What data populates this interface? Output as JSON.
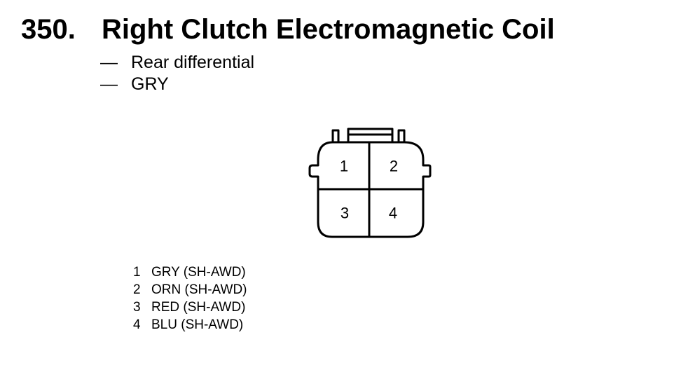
{
  "header": {
    "number": "350.",
    "title": "Right Clutch Electromagnetic Coil"
  },
  "details": [
    {
      "dash": "—",
      "text": "Rear differential"
    },
    {
      "dash": "—",
      "text": "GRY"
    }
  ],
  "connector": {
    "cavities": [
      "1",
      "2",
      "3",
      "4"
    ]
  },
  "pins": [
    {
      "pin": "1",
      "wire": "GRY (SH-AWD)"
    },
    {
      "pin": "2",
      "wire": "ORN (SH-AWD)"
    },
    {
      "pin": "3",
      "wire": "RED (SH-AWD)"
    },
    {
      "pin": "4",
      "wire": "BLU (SH-AWD)"
    }
  ]
}
